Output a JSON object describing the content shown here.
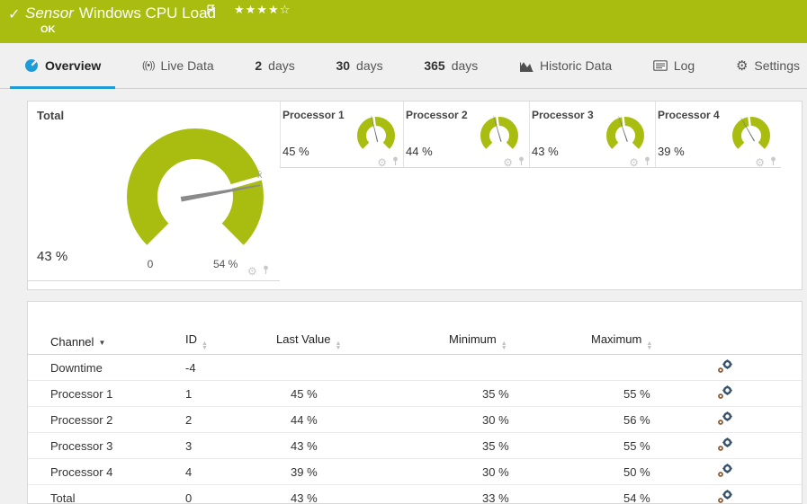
{
  "titlebar": {
    "status_check": "✓",
    "sensor_word": "Sensor",
    "sensor_name": "Windows CPU Load",
    "status_text": "OK",
    "stars_filled": 4,
    "stars_total": 5
  },
  "tabs": {
    "overview": "Overview",
    "live_data": "Live Data",
    "d2_num": "2",
    "d2_word": "days",
    "d30_num": "30",
    "d30_word": "days",
    "d365_num": "365",
    "d365_word": "days",
    "historic": "Historic Data",
    "log": "Log",
    "settings": "Settings"
  },
  "gauges": {
    "total": {
      "label": "Total",
      "value_text": "43 %",
      "value": 43,
      "max": 54,
      "scale_min_label": "0",
      "scale_max_label": "54 %",
      "avg_marker": "x̄"
    },
    "processors": [
      {
        "label": "Processor 1",
        "value_text": "45 %",
        "value": 45,
        "max": 100
      },
      {
        "label": "Processor 2",
        "value_text": "44 %",
        "value": 44,
        "max": 100
      },
      {
        "label": "Processor 3",
        "value_text": "43 %",
        "value": 43,
        "max": 100
      },
      {
        "label": "Processor 4",
        "value_text": "39 %",
        "value": 39,
        "max": 100
      }
    ]
  },
  "table": {
    "columns": {
      "channel": "Channel",
      "id": "ID",
      "last_value": "Last Value",
      "minimum": "Minimum",
      "maximum": "Maximum"
    },
    "rows": [
      {
        "channel": "Downtime",
        "id": "-4",
        "last": "",
        "min": "",
        "max": ""
      },
      {
        "channel": "Processor 1",
        "id": "1",
        "last": "45 %",
        "min": "35 %",
        "max": "55 %"
      },
      {
        "channel": "Processor 2",
        "id": "2",
        "last": "44 %",
        "min": "30 %",
        "max": "56 %"
      },
      {
        "channel": "Processor 3",
        "id": "3",
        "last": "43 %",
        "min": "35 %",
        "max": "55 %"
      },
      {
        "channel": "Processor 4",
        "id": "4",
        "last": "39 %",
        "min": "30 %",
        "max": "50 %"
      },
      {
        "channel": "Total",
        "id": "0",
        "last": "43 %",
        "min": "33 %",
        "max": "54 %"
      }
    ]
  },
  "icons": {
    "sorted_desc": "▼",
    "sort_up": "▲",
    "sort_down": "▼",
    "gear_glyph": "⚙",
    "live_glyph": "((•))"
  },
  "colors": {
    "brand_green": "#a8bd10",
    "accent_blue": "#1e9cd7",
    "needle_gray": "#8a8a8a"
  }
}
